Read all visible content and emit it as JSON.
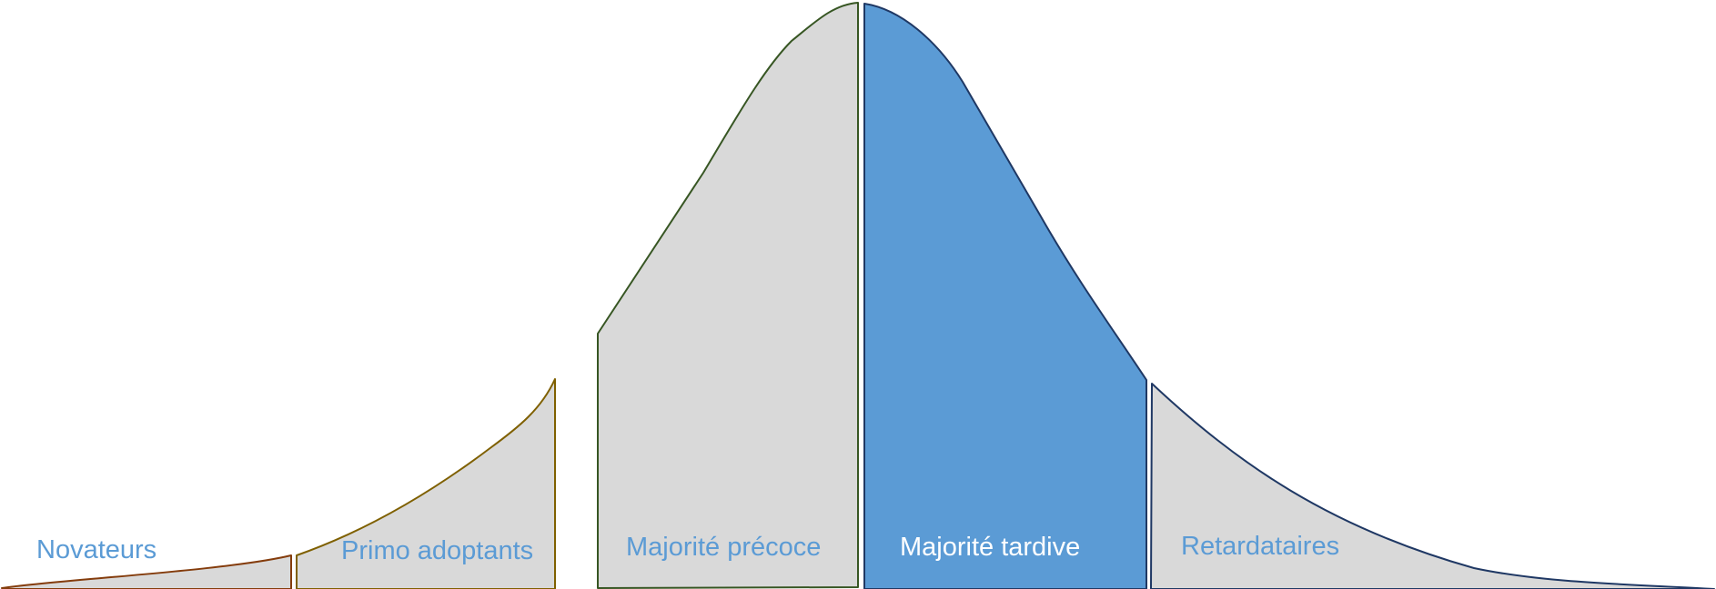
{
  "segments": [
    {
      "label": "Novateurs",
      "fill": "#D9D9D9",
      "stroke": "#843C0C",
      "text_color": "#5B9BD5"
    },
    {
      "label": "Primo adoptants",
      "fill": "#D9D9D9",
      "stroke": "#7F6000",
      "text_color": "#5B9BD5"
    },
    {
      "label": "Majorité précoce",
      "fill": "#D9D9D9",
      "stroke": "#375623",
      "text_color": "#5B9BD5"
    },
    {
      "label": "Majorité tardive",
      "fill": "#5B9BD5",
      "stroke": "#1F3864",
      "text_color": "#FFFFFF",
      "highlighted": true
    },
    {
      "label": "Retardataires",
      "fill": "#D9D9D9",
      "stroke": "#1F3864",
      "text_color": "#5B9BD5"
    }
  ]
}
